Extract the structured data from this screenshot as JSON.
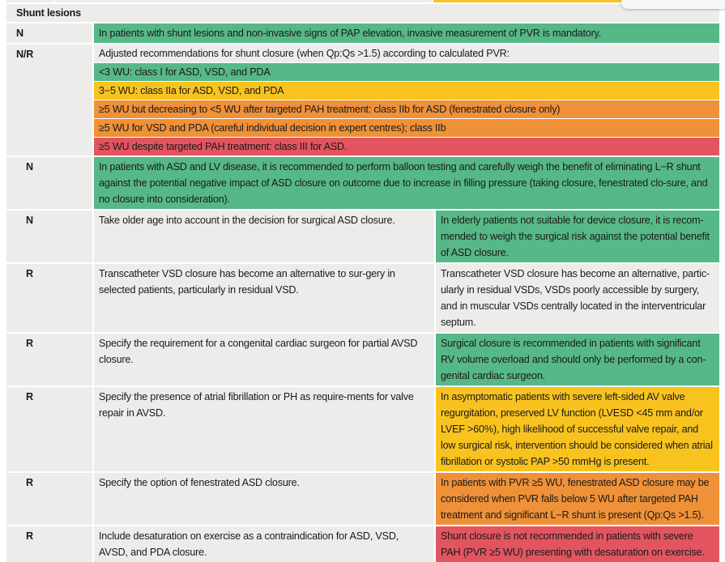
{
  "section_title": "Shunt lesions",
  "colors": {
    "green": "#57b887",
    "yellow": "#f9c31f",
    "orange": "#ef9138",
    "red": "#e25560",
    "gray": "#ececea"
  },
  "rows": [
    {
      "code": "N",
      "text": "In patients with shunt lesions and non-invasive signs of PAP elevation, invasive measurement of PVR is mandatory."
    },
    {
      "code": "N/R",
      "text": "Adjusted recommendations for shunt closure (when Qp:Qs >1.5) according to calculated PVR:",
      "sub": [
        "<3 WU: class I for ASD, VSD, and PDA",
        "3−5 WU: class IIa for ASD, VSD, and PDA",
        "≥5 WU but decreasing to <5 WU after targeted PAH treatment: class IIb for ASD (fenestrated closure only)",
        "≥5 WU for VSD and PDA (careful individual decision in expert centres); class IIb",
        "≥5 WU despite targeted PAH treatment: class III for ASD."
      ]
    },
    {
      "code": "N",
      "text": "In patients with ASD and LV disease, it is recommended to perform balloon testing and carefully weigh the benefit of eliminating L−R shunt against the potential negative impact of ASD closure on outcome due to increase in filling pressure (taking closure, fenestrated clo-sure, and no closure into consideration)."
    },
    {
      "code": "N",
      "left": "Take older age into account in the decision for surgical ASD closure.",
      "right": "In elderly patients not suitable for device closure, it is recom-mended to weigh the surgical risk against the potential benefit of ASD closure."
    },
    {
      "code": "R",
      "left": "Transcatheter VSD closure has become an alternative to sur-gery in selected patients, particularly in residual VSD.",
      "right": "Transcatheter VSD closure has become an alternative, partic-ularly in residual VSDs, VSDs poorly accessible by surgery, and in muscular VSDs centrally located in the interventricular septum."
    },
    {
      "code": "R",
      "left": "Specify the requirement for a congenital cardiac surgeon for partial AVSD closure.",
      "right": "Surgical closure is recommended in patients with significant RV volume overload and should only be performed by a con-genital cardiac surgeon."
    },
    {
      "code": "R",
      "left": "Specify the presence of atrial fibrillation or PH as require-ments for valve repair in AVSD.",
      "right": "In asymptomatic patients with severe left-sided AV valve regurgitation, preserved LV function (LVESD <45 mm and/or LVEF >60%), high likelihood of successful valve repair, and low surgical risk, intervention should be considered when atrial fibrillation or systolic PAP >50 mmHg is present."
    },
    {
      "code": "R",
      "left": "Specify the option of fenestrated ASD closure.",
      "right": "In patients with PVR ≥5 WU, fenestrated ASD closure may be considered when PVR falls below 5 WU after targeted PAH treatment and significant L−R shunt is present (Qp:Qs >1.5)."
    },
    {
      "code": "R",
      "left": "Include desaturation on exercise as a contraindication for ASD, VSD, AVSD, and PDA closure.",
      "right": "Shunt closure is not recommended in patients with severe PAH (PVR ≥5 WU) presenting with desaturation on exercise."
    }
  ]
}
